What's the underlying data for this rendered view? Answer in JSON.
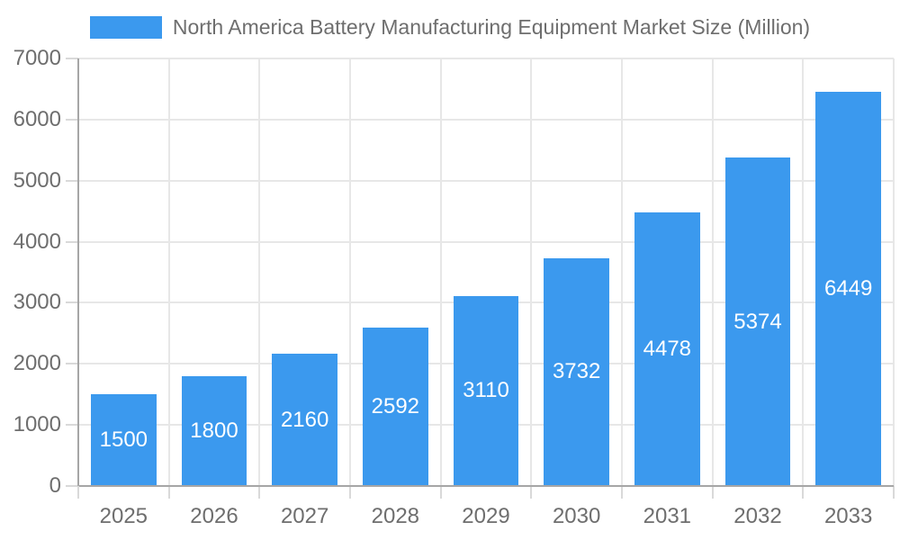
{
  "chart_data": {
    "type": "bar",
    "title": "North America Battery Manufacturing Equipment Market Size (Million)",
    "categories": [
      "2025",
      "2026",
      "2027",
      "2028",
      "2029",
      "2030",
      "2031",
      "2032",
      "2033"
    ],
    "values": [
      1500,
      1800,
      2160,
      2592,
      3110,
      3732,
      4478,
      5374,
      6449
    ],
    "series": [
      {
        "name": "North America Battery Manufacturing Equipment Market Size (Million)",
        "values": [
          1500,
          1800,
          2160,
          2592,
          3110,
          3732,
          4478,
          5374,
          6449
        ]
      }
    ],
    "xlabel": "",
    "ylabel": "",
    "ylim": [
      0,
      7000
    ],
    "yticks": [
      0,
      1000,
      2000,
      3000,
      4000,
      5000,
      6000,
      7000
    ],
    "grid": true,
    "legend_position": "top",
    "bar_color": "#3B99EE",
    "value_label_color": "#FFFFFF",
    "axis_label_color": "#6E6E6E",
    "gridline_color": "#E7E7E7",
    "axis_line_color": "#A6A6A6"
  }
}
